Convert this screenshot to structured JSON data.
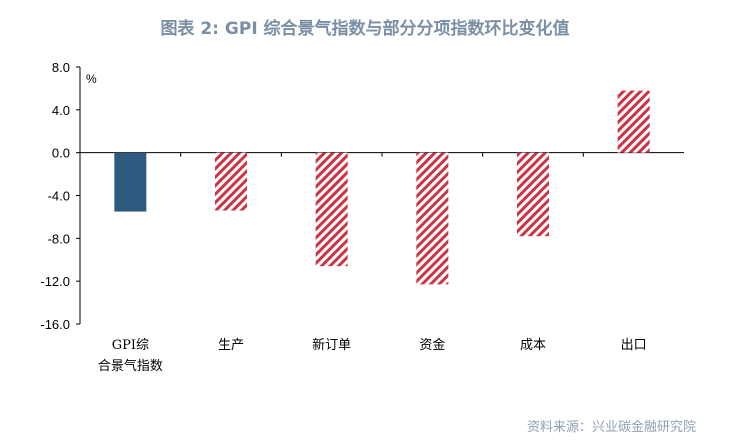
{
  "title": "图表 2:  GPI 综合景气指数与部分分项指数环比变化值",
  "source": "资料来源：兴业碳金融研究院",
  "chart_data": {
    "type": "bar",
    "unit": "%",
    "categories": [
      [
        "GPI综",
        "合景气指数"
      ],
      [
        "生产"
      ],
      [
        "新订单"
      ],
      [
        "资金"
      ],
      [
        "成本"
      ],
      [
        "出口"
      ]
    ],
    "values": [
      -5.5,
      -5.4,
      -10.6,
      -12.3,
      -7.8,
      5.8
    ],
    "ylim": [
      -16.0,
      8.0
    ],
    "yticks": [
      "8.0",
      "4.0",
      "0.0",
      "-4.0",
      "-8.0",
      "-12.0",
      "-16.0"
    ],
    "styles": [
      "solid",
      "hatched",
      "hatched",
      "hatched",
      "hatched",
      "hatched"
    ],
    "colors": {
      "solid": "#2e5a80",
      "hatch": "#cc3344",
      "axis": "#000000"
    },
    "grid": false,
    "legend": "none"
  }
}
